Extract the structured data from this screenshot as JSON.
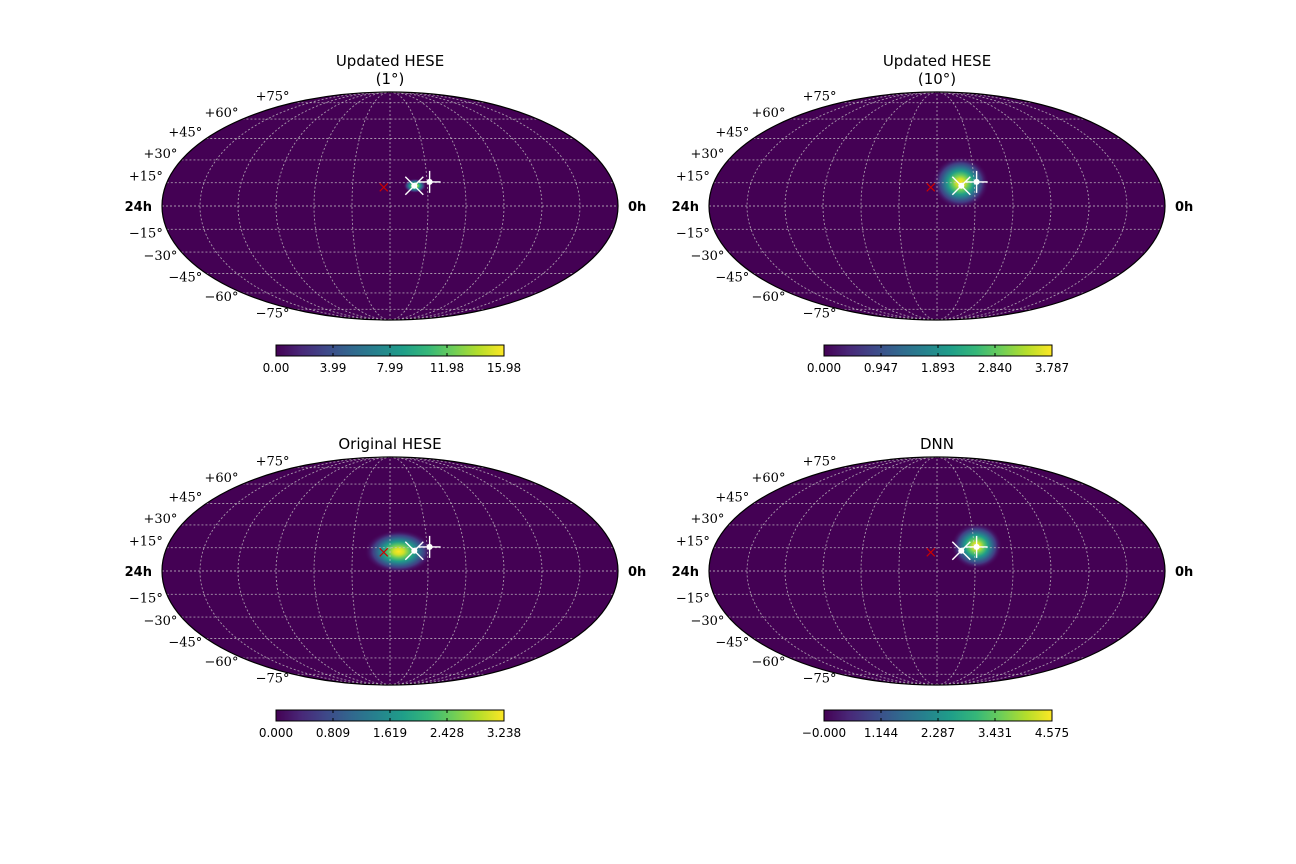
{
  "chart_data": [
    {
      "type": "heatmap",
      "projection": "mollweide",
      "title": [
        "Updated HESE",
        "(1°)"
      ],
      "ra_labels": {
        "left": "24h",
        "right": "0h"
      },
      "lat_labels": [
        "+75°",
        "+60°",
        "+45°",
        "+30°",
        "+15°",
        "−15°",
        "−30°",
        "−45°",
        "−60°",
        "−75°"
      ],
      "colorbar": {
        "colormap": "viridis",
        "ticks": [
          "0.00",
          "3.99",
          "7.99",
          "11.98",
          "15.98"
        ],
        "range": [
          0,
          15.98
        ]
      },
      "hotspot": {
        "center_deg": [
          20,
          13
        ],
        "sigma_deg": [
          4,
          2.5
        ]
      },
      "markers": [
        {
          "symbol": "plus",
          "color": "#ffffff",
          "position_deg": [
            32,
            15.5
          ]
        },
        {
          "symbol": "x",
          "color": "#ffffff",
          "position_deg": [
            19.5,
            13
          ]
        },
        {
          "symbol": "x",
          "color": "#cc0000",
          "position_deg": [
            -5,
            12
          ]
        }
      ]
    },
    {
      "type": "heatmap",
      "projection": "mollweide",
      "title": [
        "Updated HESE",
        "(10°)"
      ],
      "ra_labels": {
        "left": "24h",
        "right": "0h"
      },
      "lat_labels": [
        "+75°",
        "+60°",
        "+45°",
        "+30°",
        "+15°",
        "−15°",
        "−30°",
        "−45°",
        "−60°",
        "−75°"
      ],
      "colorbar": {
        "colormap": "viridis",
        "ticks": [
          "0.000",
          "0.947",
          "1.893",
          "2.840",
          "3.787"
        ],
        "range": [
          0,
          3.787
        ]
      },
      "hotspot": {
        "center_deg": [
          19,
          15
        ],
        "sigma_deg": [
          10,
          9
        ]
      },
      "markers": [
        {
          "symbol": "plus",
          "color": "#ffffff",
          "position_deg": [
            32,
            15.5
          ]
        },
        {
          "symbol": "x",
          "color": "#ffffff",
          "position_deg": [
            19.5,
            13
          ]
        },
        {
          "symbol": "x",
          "color": "#cc0000",
          "position_deg": [
            -5,
            12
          ]
        }
      ]
    },
    {
      "type": "heatmap",
      "projection": "mollweide",
      "title": [
        "Original HESE"
      ],
      "ra_labels": {
        "left": "24h",
        "right": "0h"
      },
      "lat_labels": [
        "+75°",
        "+60°",
        "+45°",
        "+30°",
        "+15°",
        "−15°",
        "−30°",
        "−45°",
        "−60°",
        "−75°"
      ],
      "colorbar": {
        "colormap": "viridis",
        "ticks": [
          "0.000",
          "0.809",
          "1.619",
          "2.428",
          "3.238"
        ],
        "range": [
          0,
          3.238
        ]
      },
      "hotspot": {
        "center_deg": [
          7,
          12.5
        ],
        "sigma_deg": [
          12,
          7.5
        ]
      },
      "markers": [
        {
          "symbol": "plus",
          "color": "#ffffff",
          "position_deg": [
            32,
            15.5
          ]
        },
        {
          "symbol": "x",
          "color": "#ffffff",
          "position_deg": [
            19.5,
            13
          ]
        },
        {
          "symbol": "x",
          "color": "#cc0000",
          "position_deg": [
            -5,
            12
          ]
        }
      ]
    },
    {
      "type": "heatmap",
      "projection": "mollweide",
      "title": [
        "DNN"
      ],
      "ra_labels": {
        "left": "24h",
        "right": "0h"
      },
      "lat_labels": [
        "+75°",
        "+60°",
        "+45°",
        "+30°",
        "+15°",
        "−15°",
        "−30°",
        "−45°",
        "−60°",
        "−75°"
      ],
      "colorbar": {
        "colormap": "viridis",
        "ticks": [
          "−0.000",
          "1.144",
          "2.287",
          "3.431",
          "4.575"
        ],
        "range": [
          0,
          4.575
        ]
      },
      "hotspot": {
        "center_deg": [
          32,
          16
        ],
        "sigma_deg": [
          9,
          8
        ]
      },
      "markers": [
        {
          "symbol": "plus",
          "color": "#ffffff",
          "position_deg": [
            32,
            15.5
          ]
        },
        {
          "symbol": "x",
          "color": "#ffffff",
          "position_deg": [
            19.5,
            13
          ]
        },
        {
          "symbol": "x",
          "color": "#cc0000",
          "position_deg": [
            -5,
            12
          ]
        }
      ]
    }
  ]
}
